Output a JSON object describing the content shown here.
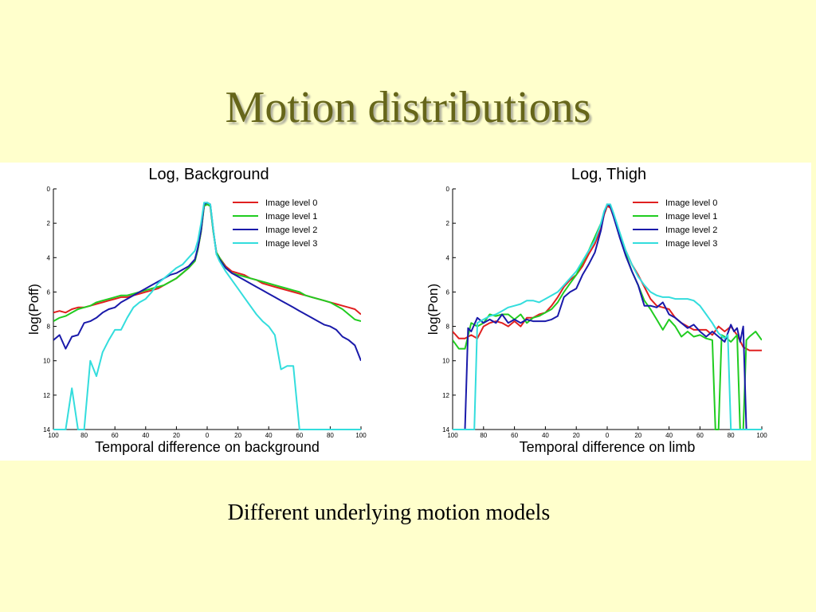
{
  "slide": {
    "title": "Motion distributions",
    "caption": "Different underlying motion models"
  },
  "chart_data": [
    {
      "type": "line",
      "title": "Log, Background",
      "xlabel": "Temporal difference on background",
      "ylabel": "log(Poff)",
      "xlim": [
        -100,
        100
      ],
      "ylim": [
        0,
        14
      ],
      "y_inverted": true,
      "x_tick_values": [
        -100,
        -80,
        -60,
        -40,
        -20,
        0,
        20,
        40,
        60,
        80,
        100
      ],
      "x_tick_labels": [
        "100",
        "80",
        "60",
        "40",
        "20",
        "0",
        "20",
        "40",
        "60",
        "80",
        "100"
      ],
      "y_ticks": [
        0,
        2,
        4,
        6,
        8,
        10,
        12,
        14
      ],
      "grid": false,
      "legend": "top-right",
      "series": [
        {
          "name": "Image level 0",
          "color": "#e02020",
          "x": [
            -100,
            -96,
            -92,
            -88,
            -84,
            -80,
            -76,
            -72,
            -68,
            -64,
            -60,
            -56,
            -52,
            -48,
            -44,
            -40,
            -36,
            -32,
            -28,
            -24,
            -20,
            -16,
            -12,
            -8,
            -6,
            -4,
            -2,
            0,
            2,
            4,
            6,
            8,
            12,
            16,
            20,
            24,
            28,
            32,
            36,
            40,
            44,
            48,
            52,
            56,
            60,
            64,
            68,
            72,
            76,
            80,
            84,
            88,
            92,
            96,
            100
          ],
          "y": [
            7.2,
            7.1,
            7.2,
            7.0,
            6.9,
            6.9,
            6.8,
            6.7,
            6.6,
            6.5,
            6.4,
            6.3,
            6.3,
            6.2,
            6.1,
            6.0,
            5.9,
            5.8,
            5.6,
            5.4,
            5.2,
            4.9,
            4.6,
            4.2,
            3.5,
            2.5,
            1.0,
            0.9,
            1.0,
            2.5,
            3.7,
            4.0,
            4.5,
            4.8,
            4.9,
            5.0,
            5.2,
            5.3,
            5.5,
            5.6,
            5.7,
            5.8,
            5.9,
            6.0,
            6.1,
            6.2,
            6.3,
            6.4,
            6.5,
            6.6,
            6.7,
            6.8,
            6.9,
            7.0,
            7.3
          ]
        },
        {
          "name": "Image level 1",
          "color": "#20cc20",
          "x": [
            -100,
            -96,
            -92,
            -88,
            -84,
            -80,
            -76,
            -72,
            -68,
            -64,
            -60,
            -56,
            -52,
            -48,
            -44,
            -40,
            -36,
            -32,
            -28,
            -24,
            -20,
            -16,
            -12,
            -8,
            -6,
            -4,
            -2,
            0,
            2,
            4,
            6,
            8,
            12,
            16,
            20,
            24,
            28,
            32,
            36,
            40,
            44,
            48,
            52,
            56,
            60,
            64,
            68,
            72,
            76,
            80,
            84,
            88,
            92,
            96,
            100
          ],
          "y": [
            7.7,
            7.5,
            7.4,
            7.2,
            7.0,
            6.9,
            6.8,
            6.6,
            6.5,
            6.4,
            6.3,
            6.2,
            6.2,
            6.1,
            6.0,
            5.9,
            5.8,
            5.7,
            5.6,
            5.4,
            5.2,
            4.9,
            4.6,
            4.2,
            3.5,
            2.5,
            1.0,
            0.9,
            1.0,
            2.5,
            3.7,
            4.0,
            4.6,
            4.9,
            5.0,
            5.1,
            5.2,
            5.3,
            5.4,
            5.5,
            5.6,
            5.7,
            5.8,
            5.9,
            6.0,
            6.2,
            6.3,
            6.4,
            6.5,
            6.6,
            6.8,
            7.0,
            7.3,
            7.6,
            7.7
          ]
        },
        {
          "name": "Image level 2",
          "color": "#1a1aaa",
          "x": [
            -100,
            -96,
            -92,
            -88,
            -84,
            -80,
            -76,
            -72,
            -68,
            -64,
            -60,
            -56,
            -52,
            -48,
            -44,
            -40,
            -36,
            -32,
            -28,
            -24,
            -20,
            -16,
            -12,
            -8,
            -6,
            -4,
            -2,
            0,
            2,
            4,
            6,
            8,
            12,
            16,
            20,
            24,
            28,
            32,
            36,
            40,
            44,
            48,
            52,
            56,
            60,
            64,
            68,
            72,
            76,
            80,
            84,
            88,
            92,
            96,
            100
          ],
          "y": [
            8.8,
            8.5,
            9.3,
            8.6,
            8.5,
            7.8,
            7.7,
            7.5,
            7.2,
            7.0,
            6.9,
            6.6,
            6.4,
            6.2,
            6.0,
            5.8,
            5.6,
            5.4,
            5.2,
            5.0,
            4.9,
            4.7,
            4.5,
            4.1,
            3.4,
            2.4,
            0.9,
            0.8,
            0.9,
            2.4,
            3.8,
            4.1,
            4.6,
            4.9,
            5.1,
            5.3,
            5.5,
            5.7,
            5.9,
            6.1,
            6.3,
            6.5,
            6.7,
            6.9,
            7.1,
            7.3,
            7.5,
            7.7,
            7.9,
            8.0,
            8.2,
            8.6,
            8.8,
            9.1,
            10.0
          ]
        },
        {
          "name": "Image level 3",
          "color": "#33dddd",
          "x": [
            -100,
            -96,
            -92,
            -88,
            -84,
            -80,
            -76,
            -72,
            -68,
            -64,
            -60,
            -56,
            -52,
            -48,
            -44,
            -40,
            -36,
            -32,
            -28,
            -24,
            -20,
            -16,
            -12,
            -8,
            -6,
            -4,
            -2,
            0,
            2,
            4,
            6,
            8,
            12,
            16,
            20,
            24,
            28,
            32,
            36,
            40,
            44,
            48,
            52,
            56,
            60,
            64,
            68,
            72,
            76,
            80,
            84,
            88,
            92,
            96,
            100
          ],
          "y": [
            14.0,
            14.0,
            14.0,
            11.6,
            14.0,
            14.0,
            10.0,
            10.9,
            9.5,
            8.8,
            8.2,
            8.2,
            7.5,
            6.9,
            6.6,
            6.4,
            6.0,
            5.5,
            5.2,
            4.9,
            4.6,
            4.4,
            4.0,
            3.6,
            3.0,
            2.0,
            0.8,
            0.8,
            0.9,
            2.4,
            3.8,
            4.2,
            4.8,
            5.3,
            5.8,
            6.3,
            6.8,
            7.3,
            7.7,
            8.0,
            8.5,
            10.5,
            10.3,
            10.3,
            14.0,
            14.0,
            14.0,
            14.0,
            14.0,
            14.0,
            14.0,
            14.0,
            14.0,
            14.0,
            14.0
          ]
        }
      ]
    },
    {
      "type": "line",
      "title": "Log, Thigh",
      "xlabel": "Temporal difference on limb",
      "ylabel": "log(Pon)",
      "xlim": [
        -100,
        100
      ],
      "ylim": [
        0,
        14
      ],
      "y_inverted": true,
      "x_tick_values": [
        -100,
        -80,
        -60,
        -40,
        -20,
        0,
        20,
        40,
        60,
        80,
        100
      ],
      "x_tick_labels": [
        "100",
        "80",
        "60",
        "40",
        "20",
        "0",
        "20",
        "40",
        "60",
        "80",
        "100"
      ],
      "y_ticks": [
        0,
        2,
        4,
        6,
        8,
        10,
        12,
        14
      ],
      "grid": false,
      "legend": "top-right",
      "series": [
        {
          "name": "Image level 0",
          "color": "#e02020",
          "x": [
            -100,
            -96,
            -92,
            -88,
            -84,
            -80,
            -76,
            -72,
            -68,
            -64,
            -60,
            -56,
            -52,
            -48,
            -44,
            -40,
            -36,
            -32,
            -28,
            -24,
            -20,
            -16,
            -12,
            -8,
            -4,
            -2,
            0,
            2,
            4,
            8,
            12,
            16,
            20,
            24,
            28,
            32,
            36,
            40,
            44,
            48,
            52,
            56,
            60,
            64,
            68,
            72,
            76,
            80,
            84,
            88,
            92,
            96,
            100
          ],
          "y": [
            8.3,
            8.7,
            8.7,
            8.5,
            8.7,
            8.0,
            7.8,
            7.7,
            7.8,
            8.0,
            7.7,
            8.0,
            7.5,
            7.5,
            7.3,
            7.2,
            6.8,
            6.3,
            5.7,
            5.3,
            5.0,
            4.5,
            3.8,
            3.2,
            2.3,
            1.5,
            1.0,
            1.1,
            1.6,
            2.7,
            3.6,
            4.4,
            5.0,
            5.7,
            6.4,
            6.8,
            6.9,
            7.0,
            7.5,
            7.8,
            8.0,
            8.2,
            8.2,
            8.2,
            8.5,
            8.0,
            8.3,
            8.0,
            8.5,
            9.2,
            9.4,
            9.4,
            9.4
          ]
        },
        {
          "name": "Image level 1",
          "color": "#20cc20",
          "x": [
            -100,
            -96,
            -92,
            -88,
            -84,
            -80,
            -76,
            -72,
            -68,
            -64,
            -60,
            -56,
            -52,
            -48,
            -44,
            -40,
            -36,
            -32,
            -28,
            -24,
            -20,
            -16,
            -12,
            -8,
            -4,
            -2,
            0,
            2,
            4,
            8,
            12,
            16,
            20,
            24,
            28,
            32,
            36,
            40,
            44,
            48,
            52,
            56,
            60,
            64,
            68,
            70,
            72,
            74,
            76,
            80,
            84,
            86,
            88,
            90,
            92,
            96,
            100
          ],
          "y": [
            8.8,
            9.3,
            9.3,
            7.8,
            8.0,
            7.8,
            7.3,
            7.4,
            7.3,
            7.3,
            7.6,
            7.3,
            7.8,
            7.5,
            7.4,
            7.2,
            7.0,
            6.6,
            6.0,
            5.5,
            5.0,
            4.3,
            3.6,
            2.8,
            2.0,
            1.4,
            0.9,
            1.0,
            1.5,
            2.6,
            3.8,
            4.8,
            5.6,
            6.5,
            7.0,
            7.6,
            8.2,
            7.6,
            8.0,
            8.6,
            8.3,
            8.6,
            8.5,
            8.7,
            8.8,
            14.0,
            14.0,
            8.5,
            8.6,
            8.9,
            8.5,
            14.0,
            14.0,
            8.8,
            8.6,
            8.3,
            8.8
          ]
        },
        {
          "name": "Image level 2",
          "color": "#1a1aaa",
          "x": [
            -100,
            -94,
            -92,
            -90,
            -88,
            -84,
            -80,
            -76,
            -72,
            -68,
            -64,
            -60,
            -56,
            -52,
            -48,
            -44,
            -40,
            -36,
            -32,
            -28,
            -24,
            -20,
            -16,
            -12,
            -8,
            -4,
            -2,
            0,
            2,
            4,
            8,
            12,
            16,
            20,
            24,
            28,
            32,
            36,
            40,
            44,
            48,
            52,
            56,
            60,
            64,
            68,
            72,
            76,
            80,
            82,
            84,
            86,
            88,
            90,
            92
          ],
          "y": [
            14.0,
            14.0,
            14.0,
            8.1,
            8.3,
            7.5,
            7.8,
            7.6,
            7.8,
            7.3,
            7.8,
            7.6,
            7.8,
            7.6,
            7.7,
            7.7,
            7.7,
            7.6,
            7.4,
            6.3,
            6.0,
            5.8,
            5.0,
            4.4,
            3.7,
            2.4,
            1.4,
            0.9,
            1.0,
            1.6,
            2.8,
            3.9,
            4.8,
            5.6,
            6.8,
            6.8,
            6.9,
            6.6,
            7.3,
            7.5,
            7.8,
            8.1,
            7.9,
            8.3,
            8.6,
            8.3,
            8.6,
            8.9,
            7.9,
            8.3,
            8.1,
            8.9,
            8.0,
            14.0,
            14.0
          ]
        },
        {
          "name": "Image level 3",
          "color": "#33dddd",
          "x": [
            -100,
            -88,
            -86,
            -84,
            -80,
            -76,
            -72,
            -68,
            -64,
            -60,
            -56,
            -52,
            -48,
            -44,
            -40,
            -36,
            -32,
            -28,
            -24,
            -20,
            -16,
            -12,
            -8,
            -4,
            -2,
            0,
            2,
            4,
            8,
            12,
            16,
            20,
            24,
            28,
            32,
            36,
            40,
            44,
            48,
            52,
            56,
            60,
            64,
            68,
            72,
            76,
            78,
            80,
            82,
            84,
            86,
            88,
            92,
            96,
            100
          ],
          "y": [
            14.0,
            14.0,
            14.0,
            7.8,
            7.6,
            7.4,
            7.3,
            7.1,
            6.9,
            6.8,
            6.7,
            6.5,
            6.5,
            6.6,
            6.4,
            6.2,
            6.0,
            5.6,
            5.2,
            4.8,
            4.2,
            3.6,
            3.0,
            2.0,
            1.3,
            0.9,
            0.9,
            1.4,
            2.5,
            3.6,
            4.4,
            5.1,
            5.6,
            6.0,
            6.2,
            6.3,
            6.3,
            6.4,
            6.4,
            6.4,
            6.5,
            6.8,
            7.3,
            7.8,
            8.4,
            8.7,
            8.5,
            14.0,
            14.0,
            14.0,
            14.0,
            14.0,
            14.0,
            14.0,
            14.0
          ]
        }
      ]
    }
  ]
}
